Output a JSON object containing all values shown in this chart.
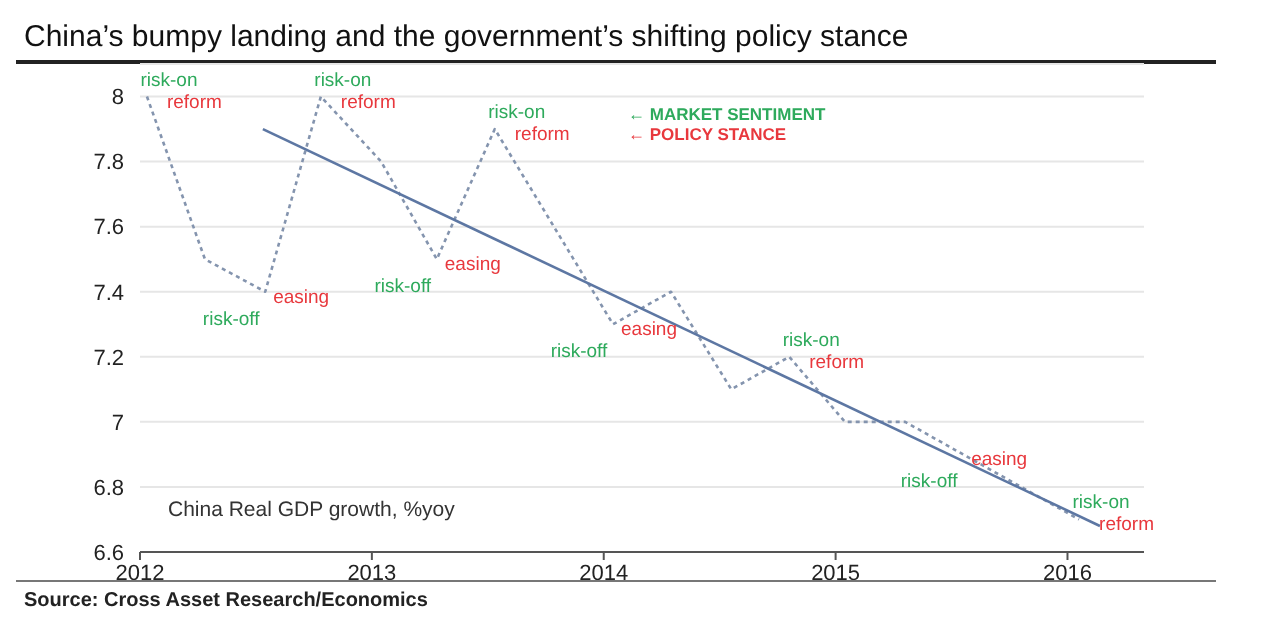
{
  "chart_data": {
    "type": "line",
    "title": "China’s bumpy landing and the government’s shifting policy stance",
    "xlim": [
      2012,
      2016.33
    ],
    "xticks": [
      2012,
      2013,
      2014,
      2015,
      2016
    ],
    "ylim": [
      6.6,
      8.1
    ],
    "yticks": [
      6.6,
      6.8,
      7,
      7.2,
      7.4,
      7.6,
      7.8,
      8
    ],
    "grid": "y",
    "marker": "none",
    "series": [
      {
        "color": "#8494ae",
        "line_style": "dotted",
        "x": [
          2012.03,
          2012.28,
          2012.54,
          2012.78,
          2013.04,
          2013.28,
          2013.53,
          2014.04,
          2014.29,
          2014.55,
          2014.8,
          2015.04,
          2015.3,
          2015.55,
          2015.8,
          2016.05
        ],
        "values": [
          8.0,
          7.5,
          7.4,
          8.0,
          7.8,
          7.5,
          7.9,
          7.3,
          7.4,
          7.1,
          7.2,
          7.0,
          7.0,
          6.9,
          6.8,
          6.7
        ]
      },
      {
        "color": "#5d77a3",
        "line_style": "solid",
        "x": [
          2012.53,
          2016.14
        ],
        "values": [
          7.9,
          6.68
        ]
      }
    ],
    "annotations": [
      {
        "text": "risk-on",
        "x": 2012.03,
        "y": 8.0
      },
      {
        "text": "reform",
        "x": 2012.03,
        "y": 8.0
      },
      {
        "text": "risk-off",
        "x": 2012.54,
        "y": 7.4
      },
      {
        "text": "easing",
        "x": 2012.54,
        "y": 7.4
      },
      {
        "text": "risk-on",
        "x": 2012.78,
        "y": 8.0
      },
      {
        "text": "reform",
        "x": 2012.78,
        "y": 8.0
      },
      {
        "text": "risk-off",
        "x": 2013.28,
        "y": 7.5
      },
      {
        "text": "easing",
        "x": 2013.28,
        "y": 7.5
      },
      {
        "text": "risk-on",
        "x": 2013.53,
        "y": 7.9
      },
      {
        "text": "reform",
        "x": 2013.53,
        "y": 7.9
      },
      {
        "text": "risk-off",
        "x": 2014.04,
        "y": 7.3
      },
      {
        "text": "easing",
        "x": 2014.04,
        "y": 7.3
      },
      {
        "text": "risk-on",
        "x": 2014.8,
        "y": 7.2
      },
      {
        "text": "reform",
        "x": 2014.8,
        "y": 7.2
      },
      {
        "text": "risk-off",
        "x": 2015.55,
        "y": 6.9
      },
      {
        "text": "easing",
        "x": 2015.55,
        "y": 6.9
      },
      {
        "text": "risk-on",
        "x": 2016.05,
        "y": 6.7
      },
      {
        "text": "reform",
        "x": 2016.05,
        "y": 6.7
      },
      "← MARKET SENTIMENT",
      "← POLICY STANCE",
      "China Real GDP growth, %yoy",
      "Source: Cross Asset Research/Economics"
    ]
  }
}
